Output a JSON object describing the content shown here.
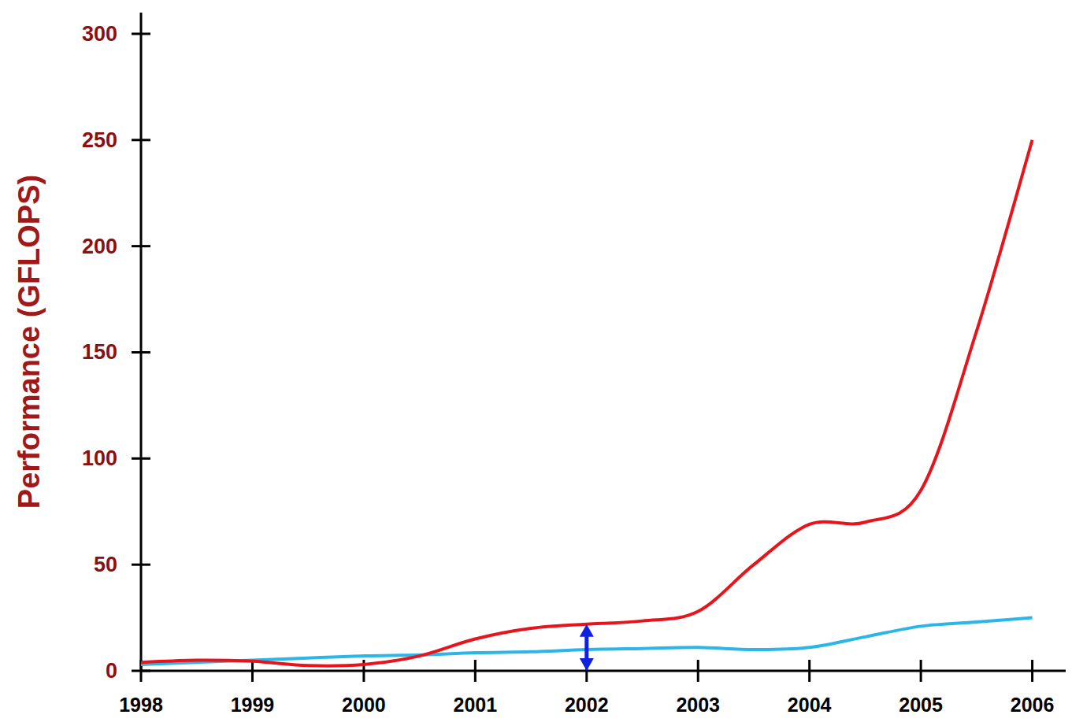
{
  "chart_data": {
    "type": "line",
    "y_label": "Performance (GFLOPS)",
    "x": [
      1998,
      1998.5,
      1999,
      1999.5,
      2000,
      2000.5,
      2001,
      2001.5,
      2002,
      2002.5,
      2003,
      2003.5,
      2004,
      2004.5,
      2005,
      2005.5,
      2006
    ],
    "series": [
      {
        "color": "#e8141b",
        "values": [
          4,
          5,
          4.5,
          2.5,
          3,
          7,
          15,
          20,
          22,
          23.5,
          28,
          50,
          69,
          70,
          85,
          160,
          250
        ]
      },
      {
        "color": "#2cb6e8",
        "values": [
          3,
          4,
          5,
          6,
          7,
          7.5,
          8.5,
          9,
          10,
          10.5,
          11,
          10,
          11,
          16,
          21,
          23,
          25
        ]
      }
    ],
    "xlim": [
      1998,
      2006.3
    ],
    "xticks": [
      1998,
      1999,
      2000,
      2001,
      2002,
      2003,
      2004,
      2005,
      2006
    ],
    "ylim": [
      0,
      310
    ],
    "yticks": [
      0,
      50,
      100,
      150,
      200,
      250,
      300
    ],
    "grid": false
  }
}
